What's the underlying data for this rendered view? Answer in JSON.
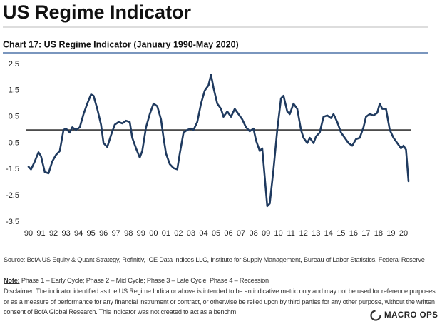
{
  "header": {
    "title": "US Regime Indicator"
  },
  "chart_data": {
    "type": "line",
    "title": "Chart 17: US Regime Indicator (January 1990-May 2020)",
    "color": "#1f3a5f",
    "x": [
      1990.0,
      1990.2,
      1990.5,
      1990.8,
      1991.0,
      1991.3,
      1991.6,
      1991.9,
      1992.2,
      1992.5,
      1992.8,
      1993.0,
      1993.3,
      1993.5,
      1993.8,
      1994.1,
      1994.4,
      1994.7,
      1995.0,
      1995.2,
      1995.5,
      1995.8,
      1996.0,
      1996.3,
      1996.6,
      1996.9,
      1997.2,
      1997.5,
      1997.8,
      1998.1,
      1998.3,
      1998.6,
      1998.9,
      1999.1,
      1999.4,
      1999.7,
      2000.0,
      2000.3,
      2000.6,
      2000.8,
      2001.0,
      2001.3,
      2001.6,
      2001.9,
      2002.1,
      2002.4,
      2002.7,
      2003.0,
      2003.2,
      2003.5,
      2003.8,
      2004.1,
      2004.4,
      2004.6,
      2004.8,
      2005.1,
      2005.4,
      2005.6,
      2005.9,
      2006.2,
      2006.5,
      2006.8,
      2007.1,
      2007.4,
      2007.7,
      2008.0,
      2008.2,
      2008.5,
      2008.7,
      2008.9,
      2009.1,
      2009.3,
      2009.6,
      2009.9,
      2010.2,
      2010.4,
      2010.7,
      2010.9,
      2011.2,
      2011.5,
      2011.8,
      2012.0,
      2012.3,
      2012.5,
      2012.8,
      2013.0,
      2013.3,
      2013.6,
      2013.9,
      2014.2,
      2014.4,
      2014.7,
      2015.0,
      2015.3,
      2015.6,
      2015.9,
      2016.2,
      2016.5,
      2016.8,
      2017.0,
      2017.3,
      2017.6,
      2017.9,
      2018.1,
      2018.3,
      2018.6,
      2018.9,
      2019.2,
      2019.5,
      2019.8,
      2020.0,
      2020.2,
      2020.4
    ],
    "values": [
      -1.4,
      -1.5,
      -1.2,
      -0.85,
      -1.0,
      -1.6,
      -1.65,
      -1.2,
      -0.95,
      -0.8,
      0.0,
      0.05,
      -0.1,
      0.1,
      0.0,
      0.1,
      0.6,
      1.0,
      1.35,
      1.3,
      0.8,
      0.2,
      -0.5,
      -0.65,
      -0.2,
      0.2,
      0.3,
      0.25,
      0.35,
      0.3,
      -0.3,
      -0.7,
      -1.05,
      -0.8,
      0.1,
      0.6,
      1.0,
      0.9,
      0.4,
      -0.3,
      -0.9,
      -1.3,
      -1.45,
      -1.5,
      -0.9,
      -0.1,
      0.0,
      0.05,
      0.0,
      0.3,
      1.0,
      1.5,
      1.7,
      2.1,
      1.6,
      1.0,
      0.8,
      0.5,
      0.7,
      0.5,
      0.8,
      0.6,
      0.4,
      0.1,
      -0.05,
      0.05,
      -0.4,
      -0.8,
      -0.7,
      -1.8,
      -2.9,
      -2.8,
      -1.5,
      0.0,
      1.2,
      1.3,
      0.7,
      0.6,
      1.0,
      0.8,
      0.0,
      -0.3,
      -0.5,
      -0.3,
      -0.5,
      -0.25,
      -0.1,
      0.5,
      0.55,
      0.45,
      0.6,
      0.3,
      -0.1,
      -0.3,
      -0.5,
      -0.6,
      -0.35,
      -0.3,
      0.1,
      0.5,
      0.6,
      0.55,
      0.65,
      1.0,
      0.8,
      0.8,
      0.0,
      -0.3,
      -0.5,
      -0.7,
      -0.6,
      -0.75,
      -1.95
    ],
    "xlim": [
      1989.8,
      2020.6
    ],
    "xticks": [
      {
        "value": 1990,
        "label": "90"
      },
      {
        "value": 1991,
        "label": "91"
      },
      {
        "value": 1992,
        "label": "92"
      },
      {
        "value": 1993,
        "label": "93"
      },
      {
        "value": 1994,
        "label": "94"
      },
      {
        "value": 1995,
        "label": "95"
      },
      {
        "value": 1996,
        "label": "96"
      },
      {
        "value": 1997,
        "label": "97"
      },
      {
        "value": 1998,
        "label": "98"
      },
      {
        "value": 1999,
        "label": "99"
      },
      {
        "value": 2000,
        "label": "00"
      },
      {
        "value": 2001,
        "label": "01"
      },
      {
        "value": 2002,
        "label": "02"
      },
      {
        "value": 2003,
        "label": "03"
      },
      {
        "value": 2004,
        "label": "04"
      },
      {
        "value": 2005,
        "label": "05"
      },
      {
        "value": 2006,
        "label": "06"
      },
      {
        "value": 2007,
        "label": "07"
      },
      {
        "value": 2008,
        "label": "08"
      },
      {
        "value": 2009,
        "label": "09"
      },
      {
        "value": 2010,
        "label": "10"
      },
      {
        "value": 2011,
        "label": "11"
      },
      {
        "value": 2012,
        "label": "12"
      },
      {
        "value": 2013,
        "label": "13"
      },
      {
        "value": 2014,
        "label": "14"
      },
      {
        "value": 2015,
        "label": "15"
      },
      {
        "value": 2016,
        "label": "16"
      },
      {
        "value": 2017,
        "label": "17"
      },
      {
        "value": 2018,
        "label": "18"
      },
      {
        "value": 2019,
        "label": "19"
      },
      {
        "value": 2020,
        "label": "20"
      }
    ],
    "ylim": [
      -3.5,
      2.5
    ],
    "yticks": [
      2.5,
      1.5,
      0.5,
      -0.5,
      -1.5,
      -2.5,
      -3.5
    ]
  },
  "footer": {
    "source": "Source: BofA US Equity & Quant Strategy, Refinitiv, ICE Data Indices LLC, Institute for Supply Management, Bureau of Labor Statistics, Federal Reserve",
    "note_label": "Note:",
    "note": "Phase 1 – Early Cycle; Phase 2 – Mid Cycle; Phase 3 – Late Cycle; Phase 4 – Recession",
    "disclaimer": "Disclaimer: The indicator identified as the US Regime Indicator above is intended to be an indicative metric only and may not be used for reference purposes or as a measure of performance for any financial instrument or contract, or otherwise be relied upon by third parties for any other purpose, without the written consent of BofA Global Research. This indicator was not created to act as a benchm",
    "logo": "MACRO OPS"
  }
}
